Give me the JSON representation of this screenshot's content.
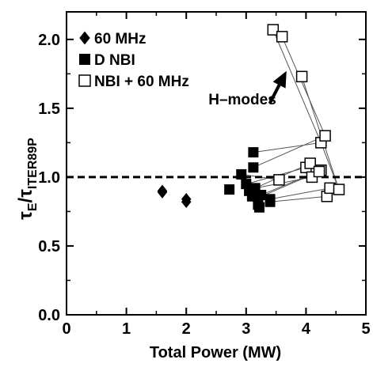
{
  "chart_data": {
    "type": "scatter",
    "xlabel": "Total Power (MW)",
    "ylabel": {
      "main": "τ",
      "sub1": "E",
      "slash": "/τ",
      "sub2": "ITER89P"
    },
    "xlim": [
      0,
      5
    ],
    "ylim": [
      0,
      2.2
    ],
    "x_ticks": [
      0,
      1,
      2,
      3,
      4,
      5
    ],
    "x_tick_labels": [
      "0",
      "1",
      "2",
      "3",
      "4",
      "5"
    ],
    "y_ticks": [
      0.0,
      0.5,
      1.0,
      1.5,
      2.0
    ],
    "y_tick_labels": [
      "0.0",
      "0.5",
      "1.0",
      "1.5",
      "2.0"
    ],
    "grid": false,
    "reference_line": {
      "y": 1.0,
      "style": "dashed"
    },
    "legend": {
      "placement": "top-left",
      "entries": [
        {
          "label": "60 MHz",
          "marker": "diamond-filled"
        },
        {
          "label": "D NBI",
          "marker": "square-filled"
        },
        {
          "label": "NBI + 60 MHz",
          "marker": "square-open"
        }
      ]
    },
    "annotation": {
      "text": "H–modes",
      "arrow_from": [
        3.4,
        1.54
      ],
      "arrow_to": [
        3.65,
        1.75
      ]
    },
    "series": [
      {
        "name": "60 MHz",
        "marker": "diamond-filled",
        "points": [
          [
            1.6,
            0.89
          ],
          [
            1.6,
            0.9
          ],
          [
            2.0,
            0.82
          ],
          [
            2.0,
            0.84
          ]
        ]
      },
      {
        "name": "D NBI",
        "marker": "square-filled",
        "points": [
          [
            2.72,
            0.91
          ],
          [
            2.92,
            1.02
          ],
          [
            3.0,
            0.95
          ],
          [
            3.05,
            0.9
          ],
          [
            3.1,
            0.86
          ],
          [
            3.12,
            1.07
          ],
          [
            3.12,
            1.18
          ],
          [
            3.15,
            0.92
          ],
          [
            3.2,
            0.85
          ],
          [
            3.2,
            0.8
          ],
          [
            3.22,
            0.78
          ],
          [
            3.25,
            0.87
          ],
          [
            3.4,
            0.82
          ],
          [
            3.4,
            0.84
          ]
        ]
      },
      {
        "name": "NBI + 60 MHz",
        "marker": "square-open",
        "points": [
          [
            3.45,
            2.07
          ],
          [
            3.6,
            2.02
          ],
          [
            3.93,
            1.73
          ],
          [
            4.25,
            1.25
          ],
          [
            4.32,
            1.3
          ],
          [
            3.55,
            0.98
          ],
          [
            4.0,
            1.07
          ],
          [
            4.07,
            1.1
          ],
          [
            4.1,
            1.0
          ],
          [
            4.25,
            1.05
          ],
          [
            4.35,
            0.86
          ],
          [
            4.4,
            0.92
          ],
          [
            4.55,
            0.91
          ],
          [
            4.22,
            1.04
          ]
        ]
      }
    ],
    "connections": [
      [
        [
          3.45,
          2.07
        ],
        [
          4.25,
          1.25
        ]
      ],
      [
        [
          3.6,
          2.02
        ],
        [
          4.32,
          1.3
        ]
      ],
      [
        [
          3.93,
          1.73
        ],
        [
          4.55,
          0.91
        ]
      ],
      [
        [
          3.12,
          1.18
        ],
        [
          4.25,
          1.25
        ]
      ],
      [
        [
          3.12,
          1.07
        ],
        [
          4.32,
          1.3
        ]
      ],
      [
        [
          2.92,
          1.02
        ],
        [
          3.55,
          0.98
        ]
      ],
      [
        [
          3.0,
          0.95
        ],
        [
          4.0,
          1.07
        ]
      ],
      [
        [
          3.05,
          0.9
        ],
        [
          4.07,
          1.1
        ]
      ],
      [
        [
          3.15,
          0.92
        ],
        [
          4.1,
          1.0
        ]
      ],
      [
        [
          3.2,
          0.85
        ],
        [
          4.22,
          1.04
        ]
      ],
      [
        [
          3.4,
          0.82
        ],
        [
          4.35,
          0.86
        ]
      ],
      [
        [
          3.4,
          0.84
        ],
        [
          4.4,
          0.92
        ]
      ],
      [
        [
          3.25,
          0.87
        ],
        [
          4.25,
          1.05
        ]
      ],
      [
        [
          4.25,
          1.25
        ],
        [
          4.55,
          0.91
        ]
      ]
    ]
  }
}
